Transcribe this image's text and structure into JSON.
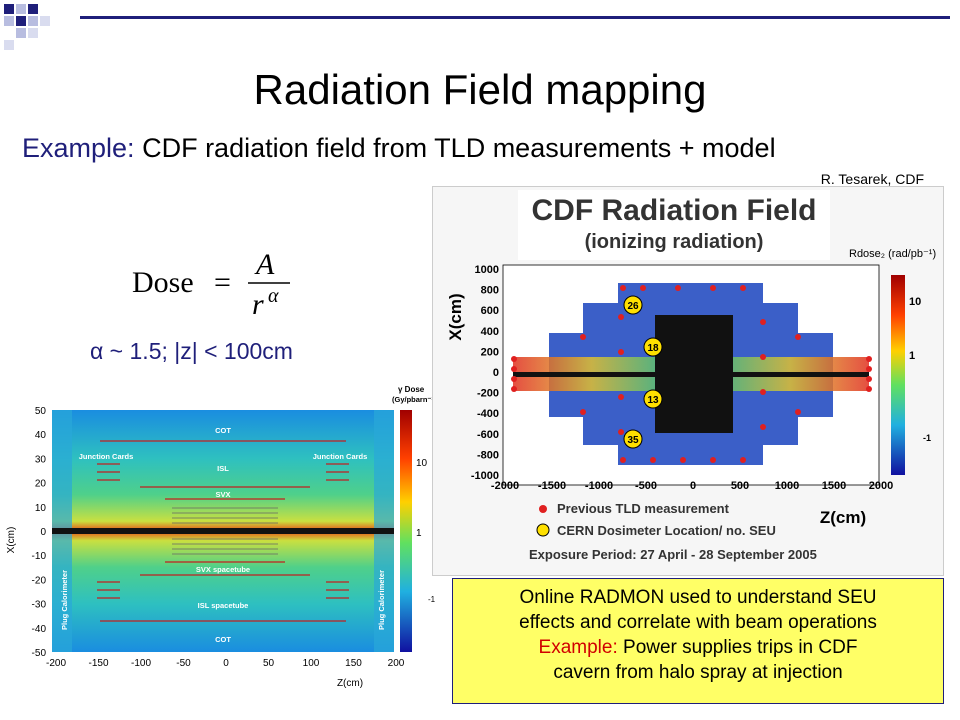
{
  "slide": {
    "title": "Radiation Field mapping",
    "subtitle_prefix": "Example:",
    "subtitle_text": "CDF radiation field from TLD measurements + model",
    "credit": "R. Tesarek, CDF",
    "formula_lhs": "Dose",
    "formula_num": "A",
    "formula_den_base": "r",
    "formula_den_exp": "α",
    "alpha_note": "α ~ 1.5;  |z| < 100cm"
  },
  "left_plot": {
    "y_label": "X(cm)",
    "x_label": "Z(cm)",
    "y_ticks": [
      "50",
      "40",
      "30",
      "20",
      "10",
      "0",
      "-10",
      "-20",
      "-30",
      "-40",
      "-50"
    ],
    "x_ticks": [
      "-200",
      "-150",
      "-100",
      "-50",
      "0",
      "50",
      "100",
      "150",
      "200"
    ],
    "colorbar_title": "γ Dose",
    "colorbar_units": "(Gy/pbarn⁻¹)",
    "colorbar_ticks": [
      "10",
      "1",
      "-1"
    ],
    "labels": {
      "cot_top": "COT",
      "junction_left": "Junction Cards",
      "junction_right": "Junction Cards",
      "isl": "ISL",
      "svx": "SVX",
      "svx_spacetube": "SVX spacetube",
      "isl_spacetube": "ISL spacetube",
      "cot_bottom": "COT",
      "plug_left": "Plug Calorimeter",
      "plug_right": "Plug Calorimeter"
    }
  },
  "right_plot": {
    "title_line1": "CDF Radiation Field",
    "title_line2": "(ionizing radiation)",
    "colorbar_label": "Rdose₂ (rad/pb⁻¹)",
    "colorbar_ticks": [
      "10",
      "1",
      "-1"
    ],
    "y_label": "X(cm)",
    "x_label": "Z(cm)",
    "y_ticks": [
      "1000",
      "800",
      "600",
      "400",
      "200",
      "0",
      "-200",
      "-400",
      "-600",
      "-800",
      "-1000"
    ],
    "x_ticks": [
      "-2000",
      "-1500",
      "-1000",
      "-500",
      "0",
      "500",
      "1000",
      "1500",
      "2000"
    ],
    "seu_markers": [
      "26",
      "18",
      "13",
      "35"
    ],
    "legend_prev": "Previous TLD measurement",
    "legend_cern": "CERN Dosimeter Location/ no. SEU",
    "exposure": "Exposure Period:  27 April - 28 September 2005"
  },
  "note": {
    "line1": "Online RADMON used to understand SEU",
    "line2": "effects and correlate with beam operations",
    "line3_prefix": "Example:",
    "line3_rest": " Power supplies trips in CDF",
    "line4": "cavern from halo spray at injection"
  },
  "colors": {
    "accent_navy": "#1f1f7a",
    "note_bg": "#ffff66",
    "red": "#d00000"
  }
}
